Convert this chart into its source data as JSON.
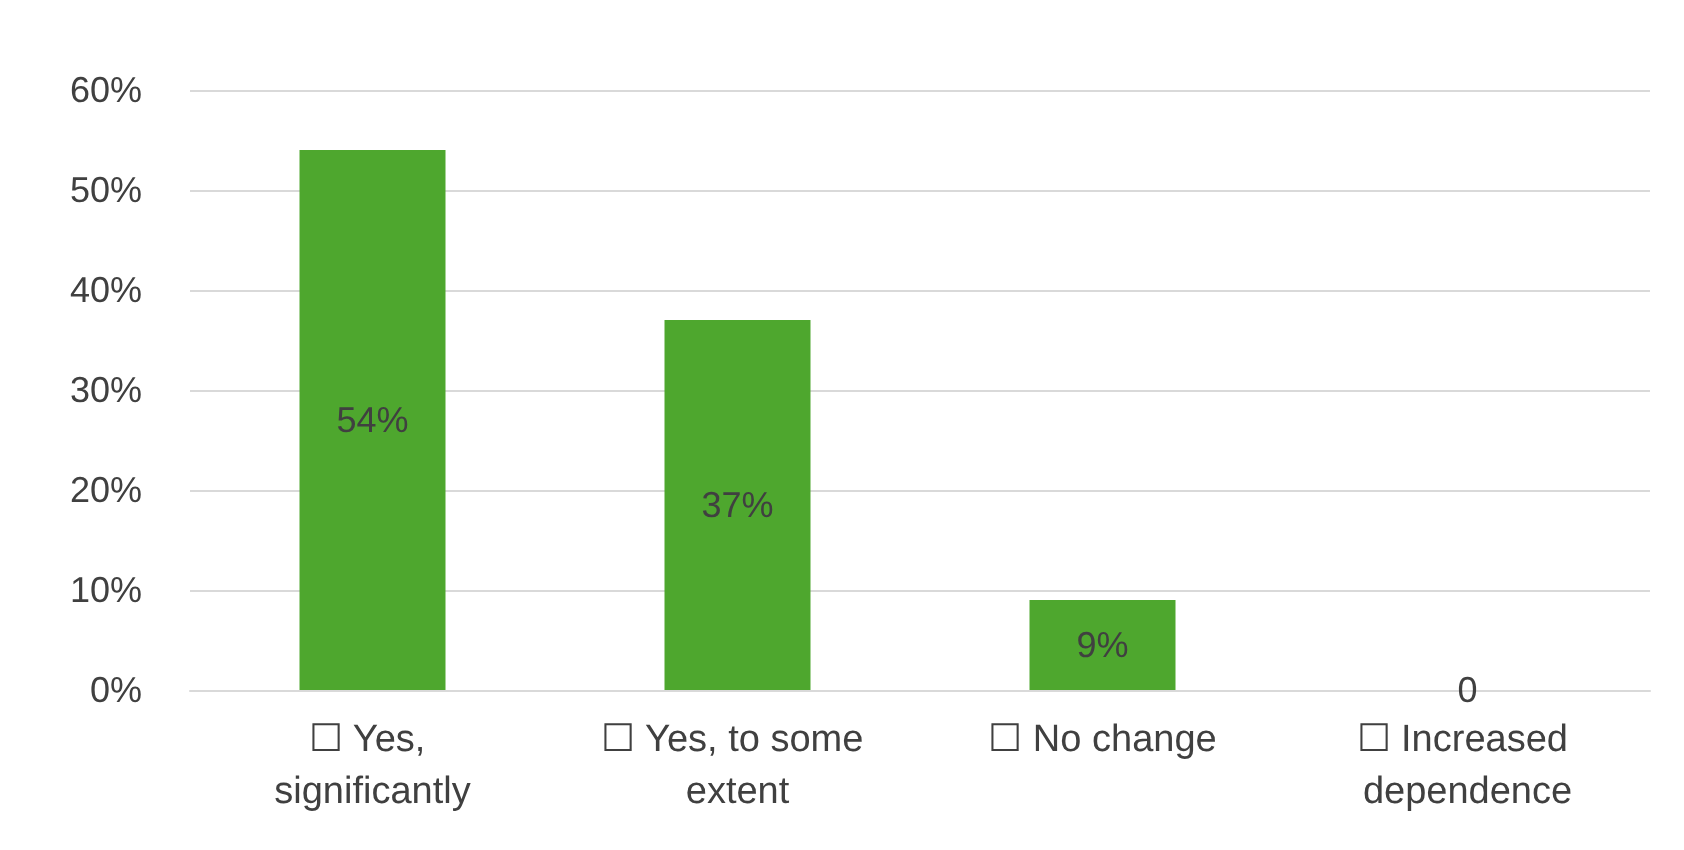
{
  "chart_data": {
    "type": "bar",
    "categories": [
      "☐ Yes, significantly",
      "☐ Yes, to some extent",
      "☐ No change",
      "☐ Increased dependence"
    ],
    "values": [
      54,
      37,
      9,
      0
    ],
    "value_labels": [
      "54%",
      "37%",
      "9%",
      "0"
    ],
    "color": "#4ea72e",
    "ylim": [
      0,
      60
    ],
    "yticks": [
      {
        "value": 0,
        "label": "0%"
      },
      {
        "value": 10,
        "label": "10%"
      },
      {
        "value": 20,
        "label": "20%"
      },
      {
        "value": 30,
        "label": "30%"
      },
      {
        "value": 40,
        "label": "40%"
      },
      {
        "value": 50,
        "label": "50%"
      },
      {
        "value": 60,
        "label": "60%"
      }
    ],
    "grid": "y"
  }
}
